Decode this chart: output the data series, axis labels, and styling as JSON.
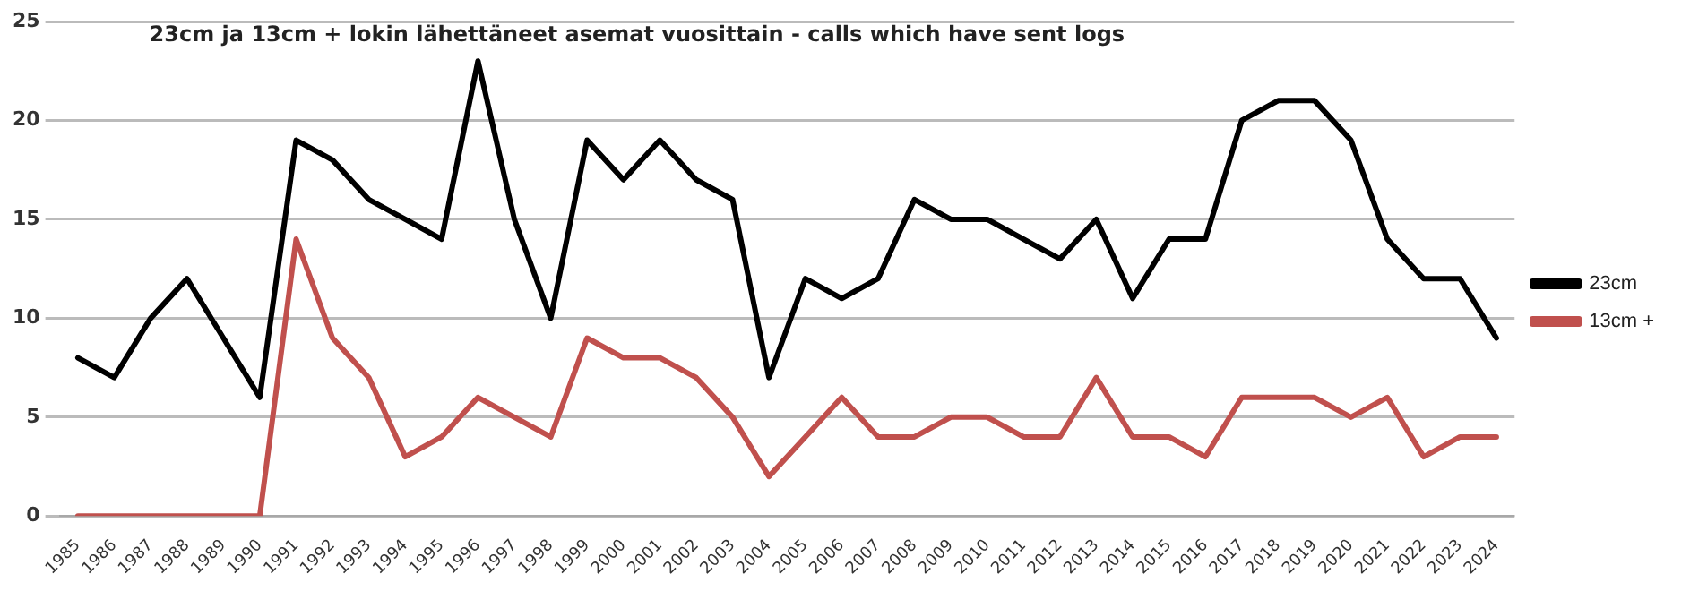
{
  "chart_data": {
    "type": "line",
    "title": "23cm ja 13cm + lokin lähettäneet asemat vuosittain - calls which have sent logs",
    "categories": [
      "1985",
      "1986",
      "1987",
      "1988",
      "1989",
      "1990",
      "1991",
      "1992",
      "1993",
      "1994",
      "1995",
      "1996",
      "1997",
      "1998",
      "1999",
      "2000",
      "2001",
      "2002",
      "2003",
      "2004",
      "2005",
      "2006",
      "2007",
      "2008",
      "2009",
      "2010",
      "2011",
      "2012",
      "2013",
      "2014",
      "2015",
      "2016",
      "2017",
      "2018",
      "2019",
      "2020",
      "2021",
      "2022",
      "2023",
      "2024"
    ],
    "series": [
      {
        "name": "23cm",
        "color": "#000000",
        "values": [
          8,
          7,
          10,
          12,
          9,
          6,
          19,
          18,
          16,
          15,
          14,
          23,
          15,
          10,
          19,
          17,
          19,
          17,
          16,
          7,
          12,
          11,
          12,
          16,
          15,
          15,
          14,
          13,
          15,
          11,
          14,
          14,
          20,
          21,
          21,
          19,
          14,
          12,
          12,
          9
        ]
      },
      {
        "name": "13cm +",
        "color": "#c0504d",
        "values": [
          0,
          0,
          0,
          0,
          0,
          0,
          14,
          9,
          7,
          3,
          4,
          6,
          5,
          4,
          9,
          8,
          8,
          7,
          5,
          2,
          4,
          6,
          4,
          4,
          5,
          5,
          4,
          4,
          7,
          4,
          4,
          3,
          6,
          6,
          6,
          5,
          6,
          3,
          4,
          4
        ]
      }
    ],
    "ylim": [
      0,
      25
    ],
    "yticks": [
      0,
      5,
      10,
      15,
      20,
      25
    ],
    "grid": "y",
    "legend": "right",
    "marker": "none",
    "line_style": "solid"
  }
}
